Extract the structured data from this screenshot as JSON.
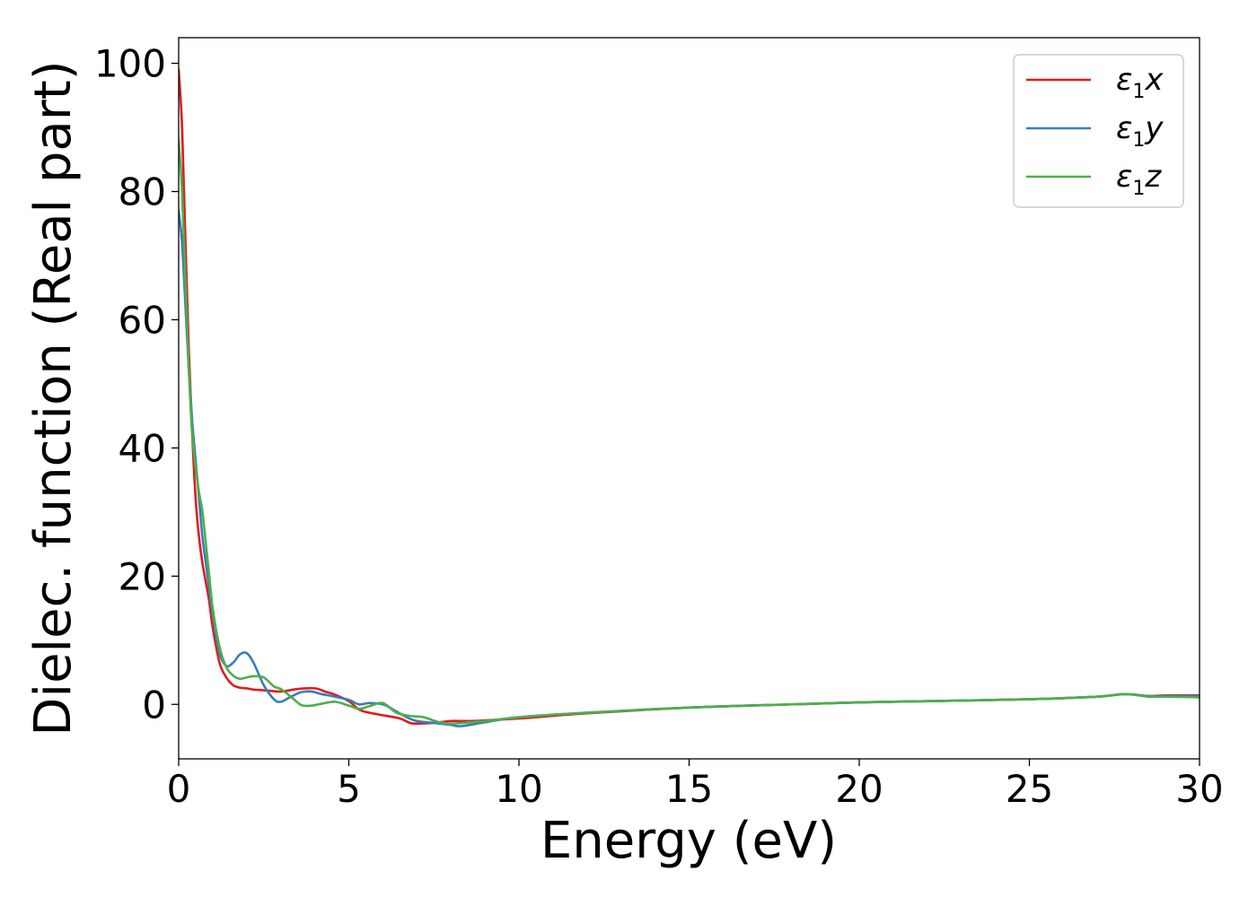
{
  "chart_data": {
    "type": "line",
    "xlabel": "Energy (eV)",
    "ylabel": "Dielec. function (Real part)",
    "xlim": [
      0,
      30
    ],
    "ylim": [
      -8.5,
      104
    ],
    "xticks": [
      0,
      5,
      10,
      15,
      20,
      25,
      30
    ],
    "yticks": [
      0,
      20,
      40,
      60,
      80,
      100
    ],
    "grid": false,
    "legend_position": "top-right",
    "series": [
      {
        "name": "ε1x",
        "symbol": "ε",
        "subscript": "1",
        "suffix": "x",
        "color": "#e41a1c",
        "x": [
          0,
          0.1,
          0.2,
          0.3,
          0.4,
          0.5,
          0.6,
          0.7,
          0.8,
          0.9,
          1.0,
          1.2,
          1.4,
          1.6,
          1.8,
          2.0,
          2.2,
          2.5,
          3.0,
          3.5,
          4.0,
          4.3,
          4.6,
          5.0,
          5.3,
          5.6,
          6.0,
          6.5,
          6.8,
          7.0,
          7.5,
          8.0,
          8.5,
          9.0,
          10.0,
          12.0,
          15.0,
          18.0,
          20.0,
          22.0,
          25.0,
          27.0,
          27.8,
          28.5,
          29.0,
          30.0
        ],
        "values": [
          99,
          90,
          72,
          55,
          42,
          32,
          26,
          22,
          19,
          16,
          12,
          6.5,
          4.2,
          3.0,
          2.6,
          2.5,
          2.3,
          2.2,
          2.0,
          2.4,
          2.5,
          2.0,
          1.5,
          0.5,
          -0.8,
          -1.3,
          -1.7,
          -2.2,
          -2.9,
          -3.0,
          -2.9,
          -2.6,
          -2.6,
          -2.5,
          -2.2,
          -1.4,
          -0.5,
          0.0,
          0.3,
          0.5,
          0.8,
          1.2,
          1.6,
          1.3,
          1.4,
          1.4
        ]
      },
      {
        "name": "ε1y",
        "symbol": "ε",
        "subscript": "1",
        "suffix": "y",
        "color": "#377eb8",
        "x": [
          0,
          0.1,
          0.2,
          0.3,
          0.4,
          0.5,
          0.6,
          0.7,
          0.8,
          0.9,
          1.0,
          1.2,
          1.4,
          1.6,
          1.8,
          2.0,
          2.2,
          2.5,
          2.8,
          3.0,
          3.3,
          3.6,
          3.9,
          4.2,
          4.5,
          5.0,
          5.3,
          5.6,
          6.0,
          6.3,
          6.7,
          7.0,
          7.5,
          8.0,
          8.3,
          9.0,
          10.0,
          12.0,
          15.0,
          18.0,
          20.0,
          22.0,
          25.0,
          27.0,
          27.8,
          28.5,
          29.0,
          30.0
        ],
        "values": [
          77,
          72,
          62,
          52,
          44,
          38,
          32,
          26,
          22,
          18,
          14,
          8,
          6.0,
          6.5,
          7.8,
          8.0,
          6.5,
          3.0,
          0.8,
          0.4,
          1.2,
          1.9,
          2.0,
          1.6,
          1.3,
          0.7,
          0.0,
          0.2,
          0.0,
          -0.8,
          -2.0,
          -2.6,
          -2.9,
          -3.2,
          -3.4,
          -2.8,
          -2.0,
          -1.3,
          -0.5,
          0.0,
          0.3,
          0.5,
          0.8,
          1.2,
          1.6,
          1.3,
          1.3,
          1.3
        ]
      },
      {
        "name": "ε1z",
        "symbol": "ε",
        "subscript": "1",
        "suffix": "z",
        "color": "#4daf4a",
        "x": [
          0,
          0.1,
          0.2,
          0.3,
          0.4,
          0.5,
          0.6,
          0.7,
          0.8,
          0.9,
          1.0,
          1.2,
          1.4,
          1.6,
          1.8,
          2.0,
          2.2,
          2.5,
          2.8,
          3.0,
          3.3,
          3.6,
          3.9,
          4.2,
          4.6,
          5.0,
          5.3,
          5.6,
          6.0,
          6.4,
          6.8,
          7.2,
          7.6,
          8.0,
          9.0,
          10.0,
          12.0,
          15.0,
          18.0,
          20.0,
          22.0,
          25.0,
          27.0,
          27.8,
          28.5,
          29.0,
          30.0
        ],
        "values": [
          88,
          80,
          66,
          52,
          42,
          37,
          33,
          30,
          25,
          20,
          15,
          9,
          5.8,
          4.5,
          4.0,
          4.2,
          4.4,
          4.2,
          2.8,
          2.4,
          1.2,
          -0.1,
          -0.2,
          0.1,
          0.4,
          -0.2,
          -0.7,
          -0.3,
          0.2,
          -1.3,
          -1.8,
          -2.0,
          -2.7,
          -3.0,
          -2.6,
          -2.0,
          -1.3,
          -0.5,
          0.0,
          0.3,
          0.5,
          0.8,
          1.2,
          1.6,
          1.2,
          1.2,
          1.1
        ]
      }
    ]
  }
}
